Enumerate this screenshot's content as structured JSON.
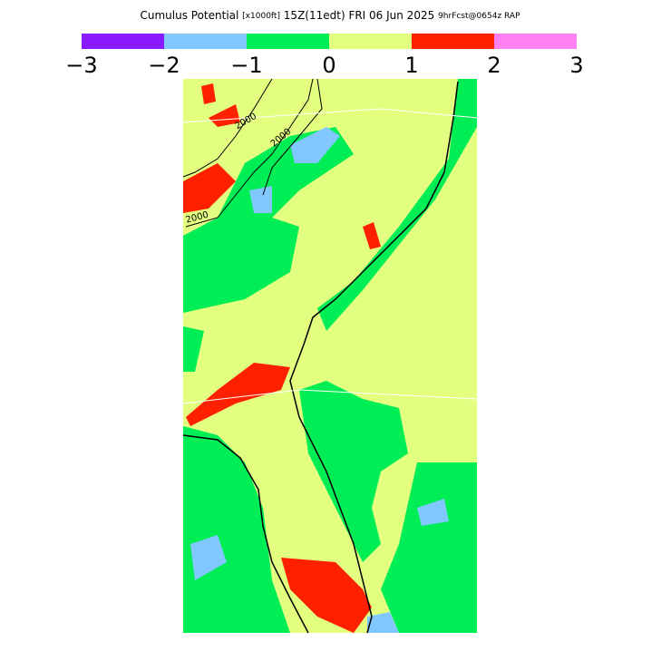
{
  "header": {
    "title": "Cumulus Potential",
    "units": "[x1000ft]",
    "valid": "15Z(11edt) FRI 06 Jun 2025",
    "model": "9hrFcst@0654z RAP"
  },
  "colorbar": {
    "colors": [
      "#8a1aff",
      "#80c8ff",
      "#00ee55",
      "#e2ff80",
      "#ff2000",
      "#ff80f0"
    ],
    "ticks": [
      "−3",
      "−2",
      "−1",
      "0",
      "1",
      "2",
      "3"
    ]
  },
  "contour_labels": [
    "2000",
    "2000",
    "2000"
  ]
}
